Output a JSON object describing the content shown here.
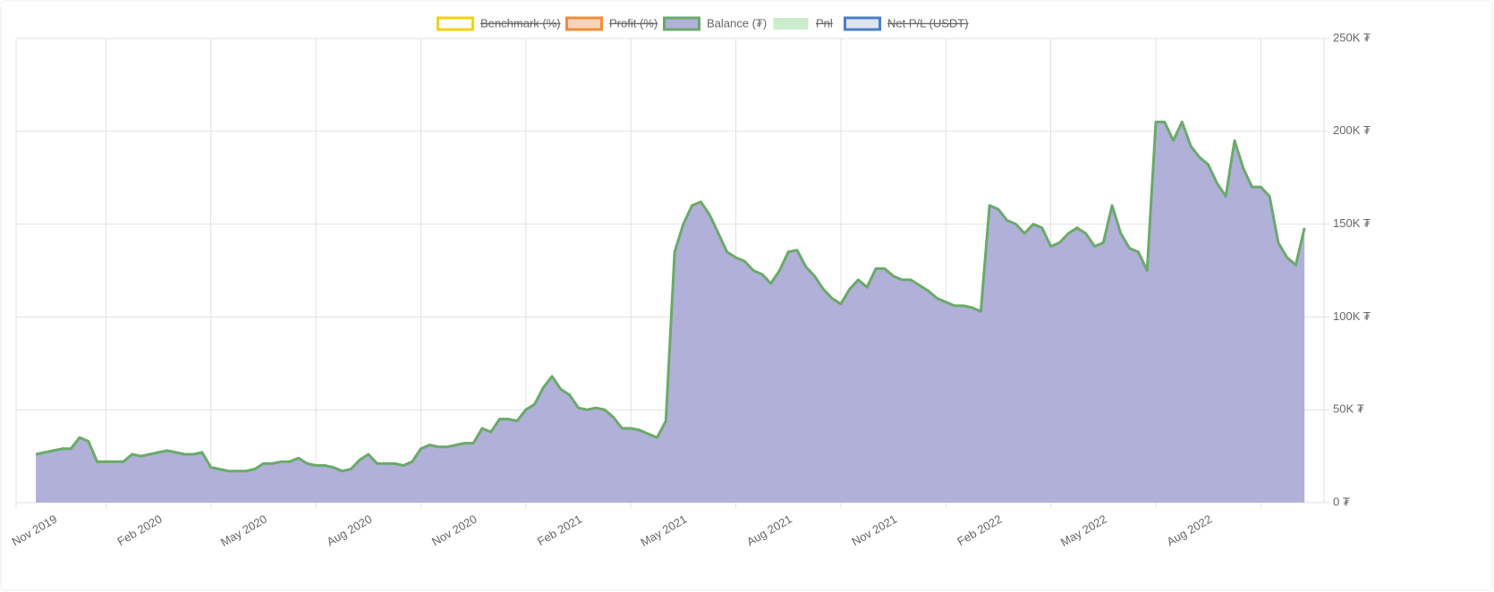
{
  "chart_data": {
    "type": "area",
    "categories": [
      "Nov 2019",
      null,
      null,
      null,
      null,
      null,
      null,
      null,
      null,
      null,
      null,
      null,
      "Feb 2020",
      null,
      null,
      null,
      null,
      null,
      null,
      null,
      null,
      null,
      null,
      null,
      "May 2020",
      null,
      null,
      null,
      null,
      null,
      null,
      null,
      null,
      null,
      null,
      null,
      "Aug 2020",
      null,
      null,
      null,
      null,
      null,
      null,
      null,
      null,
      null,
      null,
      null,
      "Nov 2020",
      null,
      null,
      null,
      null,
      null,
      null,
      null,
      null,
      null,
      null,
      null,
      "Feb 2021",
      null,
      null,
      null,
      null,
      null,
      null,
      null,
      null,
      null,
      null,
      null,
      "May 2021",
      null,
      null,
      null,
      null,
      null,
      null,
      null,
      null,
      null,
      null,
      null,
      "Aug 2021",
      null,
      null,
      null,
      null,
      null,
      null,
      null,
      null,
      null,
      null,
      null,
      "Nov 2021",
      null,
      null,
      null,
      null,
      null,
      null,
      null,
      null,
      null,
      null,
      null,
      "Feb 2022",
      null,
      null,
      null,
      null,
      null,
      null,
      null,
      null,
      null,
      null,
      null,
      "May 2022",
      null,
      null,
      null,
      null,
      null,
      null,
      null,
      null,
      null,
      null,
      null,
      "Aug 2022",
      null,
      null,
      null,
      null,
      null,
      null,
      null,
      null,
      null,
      null,
      null,
      null,
      null,
      null,
      null,
      null,
      null
    ],
    "series": [
      {
        "name": "Benchmark (%)",
        "color": "#f5d20a",
        "fill": "#ffffff",
        "hidden": true
      },
      {
        "name": "Profit (%)",
        "color": "#ee8f3a",
        "fill": "#f8d3bd",
        "hidden": true
      },
      {
        "name": "Balance (₮)",
        "color": "#6aaa6a",
        "fill": "#b0b0d8",
        "hidden": false,
        "values": [
          null,
          null,
          null,
          null,
          26000,
          27000,
          28000,
          29000,
          29000,
          35000,
          33000,
          22000,
          22000,
          22000,
          22000,
          26000,
          25000,
          26000,
          27000,
          28000,
          27000,
          26000,
          26000,
          27000,
          19000,
          18000,
          17000,
          17000,
          17000,
          18000,
          21000,
          21000,
          22000,
          22000,
          24000,
          21000,
          20000,
          20000,
          19000,
          17000,
          18000,
          23000,
          26000,
          21000,
          21000,
          21000,
          20000,
          22000,
          29000,
          31000,
          30000,
          30000,
          31000,
          32000,
          32000,
          40000,
          38000,
          45000,
          45000,
          44000,
          50000,
          53000,
          62000,
          68000,
          61000,
          58000,
          51000,
          50000,
          51000,
          50000,
          46000,
          40000,
          40000,
          39000,
          37000,
          35000,
          44000,
          135000,
          150000,
          160000,
          162000,
          155000,
          145000,
          135000,
          132000,
          130000,
          125000,
          123000,
          118000,
          125000,
          135000,
          136000,
          127000,
          122000,
          115000,
          110000,
          107000,
          115000,
          120000,
          116000,
          126000,
          126000,
          122000,
          120000,
          120000,
          117000,
          114000,
          110000,
          108000,
          106000,
          106000,
          105000,
          103000,
          160000,
          158000,
          152000,
          150000,
          145000,
          150000,
          148000,
          138000,
          140000,
          145000,
          148000,
          145000,
          138000,
          140000,
          160000,
          145000,
          137000,
          135000,
          125000,
          205000,
          205000,
          195000,
          205000,
          192000,
          186000,
          182000,
          172000,
          165000,
          195000,
          180000,
          170000,
          170000,
          165000,
          140000,
          132000,
          128000,
          148000
        ]
      },
      {
        "name": "Pnl",
        "color": "#cdeccd",
        "fill": "#cdeccd",
        "hidden": true
      },
      {
        "name": "Net P/L (USDT)",
        "color": "#4a7fc8",
        "fill": "#dfe4f1",
        "hidden": true
      }
    ],
    "ylim": [
      0,
      250000
    ],
    "yticks": [
      {
        "value": 0,
        "label": "0 ₮"
      },
      {
        "value": 50000,
        "label": "50K ₮"
      },
      {
        "value": 100000,
        "label": "100K ₮"
      },
      {
        "value": 150000,
        "label": "150K ₮"
      },
      {
        "value": 200000,
        "label": "200K ₮"
      },
      {
        "value": 250000,
        "label": "250K ₮"
      }
    ],
    "grid": true,
    "legend": "top"
  }
}
